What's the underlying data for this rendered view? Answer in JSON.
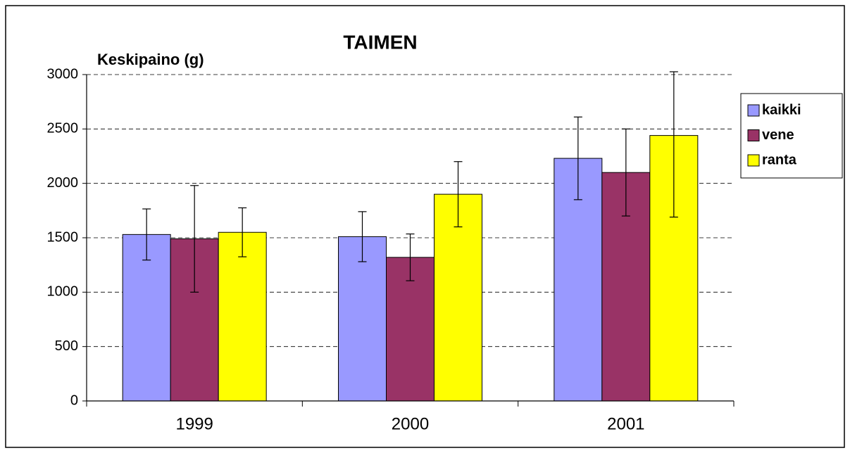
{
  "chart_data": {
    "type": "bar",
    "title": "TAIMEN",
    "y_label": "Keskipaino (g)",
    "categories": [
      "1999",
      "2000",
      "2001"
    ],
    "series": [
      {
        "name": "kaikki",
        "color": "#9999ff",
        "values": [
          1530,
          1510,
          2230
        ],
        "errors": [
          235,
          230,
          380
        ]
      },
      {
        "name": "vene",
        "color": "#993366",
        "values": [
          1490,
          1320,
          2100
        ],
        "errors": [
          490,
          215,
          400
        ]
      },
      {
        "name": "ranta",
        "color": "#ffff00",
        "values": [
          1550,
          1900,
          2440
        ],
        "errors": [
          225,
          300,
          750
        ]
      }
    ],
    "ylim": [
      0,
      3000
    ],
    "yticks": [
      0,
      500,
      1000,
      1500,
      2000,
      2500,
      3000
    ],
    "grid": true,
    "legend": "right"
  }
}
